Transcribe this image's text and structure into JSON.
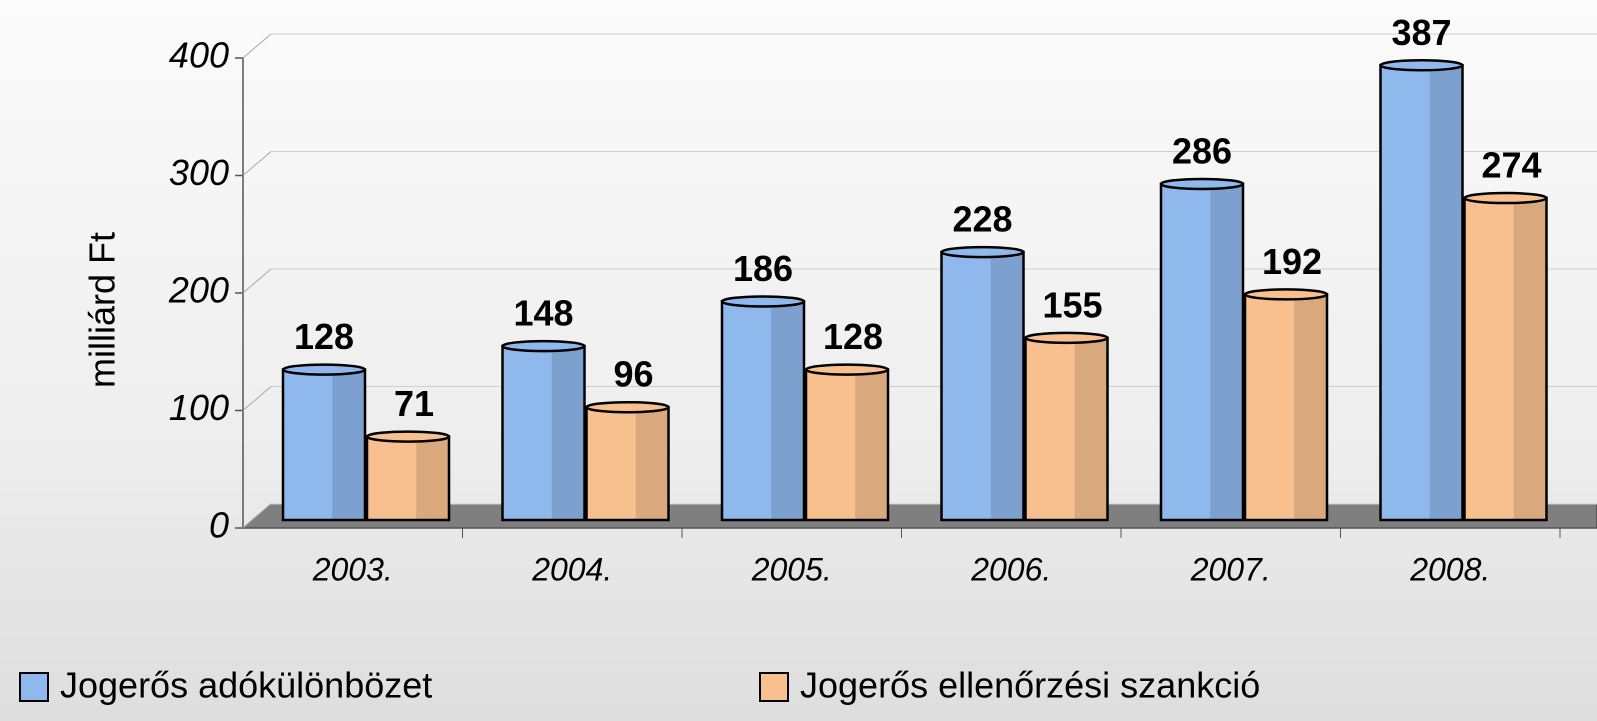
{
  "chart_data": {
    "type": "bar",
    "y_label": "milliárd Ft",
    "categories": [
      "2003.",
      "2004.",
      "2005.",
      "2006.",
      "2007.",
      "2008."
    ],
    "series": [
      {
        "name": "Jogerős adókülönbözet",
        "color": "#8fb8ec",
        "values": [
          128,
          148,
          186,
          228,
          286,
          387
        ]
      },
      {
        "name": "Jogerős ellenőrzési szankció",
        "color": "#f8c08e",
        "values": [
          71,
          96,
          128,
          155,
          192,
          274
        ]
      }
    ],
    "ylim": [
      0,
      400
    ],
    "yticks": [
      0,
      100,
      200,
      300,
      400
    ],
    "grid": true
  }
}
